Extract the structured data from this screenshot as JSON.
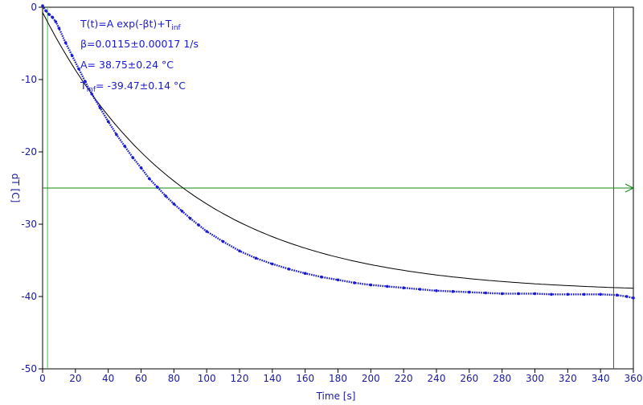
{
  "chart_data": {
    "type": "scatter",
    "xlabel": "Time [s]",
    "ylabel": "dT [C]",
    "xlim": [
      0,
      360
    ],
    "ylim": [
      -50,
      0
    ],
    "xticks": [
      0,
      20,
      40,
      60,
      80,
      100,
      120,
      140,
      160,
      180,
      200,
      220,
      240,
      260,
      280,
      300,
      320,
      340,
      360
    ],
    "yticks": [
      0,
      -10,
      -20,
      -30,
      -40,
      -50
    ],
    "grid": false,
    "fit": {
      "model": "T(t)=A exp(-βt)+T_inf",
      "beta": 0.0115,
      "beta_err": 0.00017,
      "A": 38.75,
      "A_err": 0.24,
      "T_inf": -39.47,
      "T_inf_err": 0.14
    },
    "annotations": {
      "formula_main": "T(t)=A exp(-βt)+T",
      "formula_sub": "inf",
      "beta_line": "β=0.0115±0.00017 1/s",
      "a_line": "A= 38.75±0.24 °C",
      "tinf_main": "T",
      "tinf_sub": "inf",
      "tinf_rest": "= -39.47±0.14 °C"
    },
    "series": [
      {
        "x": [
          0,
          2,
          4,
          6,
          8,
          10,
          14,
          18,
          22,
          26,
          30,
          35,
          40,
          45,
          50,
          55,
          60,
          65,
          70,
          75,
          80,
          85,
          90,
          95,
          100,
          110,
          120,
          130,
          140,
          150,
          160,
          170,
          180,
          190,
          200,
          210,
          220,
          230,
          240,
          250,
          260,
          270,
          280,
          290,
          300,
          310,
          320,
          330,
          340,
          350,
          356,
          360
        ],
        "y": [
          0.2,
          -0.5,
          -1.0,
          -1.4,
          -2.0,
          -2.9,
          -4.9,
          -6.7,
          -8.5,
          -10.3,
          -12.0,
          -13.9,
          -15.8,
          -17.6,
          -19.2,
          -20.8,
          -22.2,
          -23.7,
          -24.9,
          -26.1,
          -27.2,
          -28.2,
          -29.2,
          -30.1,
          -31.0,
          -32.4,
          -33.7,
          -34.7,
          -35.5,
          -36.2,
          -36.8,
          -37.3,
          -37.7,
          -38.1,
          -38.4,
          -38.6,
          -38.8,
          -39.0,
          -39.2,
          -39.3,
          -39.4,
          -39.5,
          -39.6,
          -39.6,
          -39.6,
          -39.7,
          -39.7,
          -39.7,
          -39.7,
          -39.8,
          -40.0,
          -40.2
        ]
      }
    ],
    "markers": {
      "green_vline_x": 3,
      "red_vline_x": 348,
      "hline_y": -25
    },
    "colors": {
      "data": "#1a1ad0",
      "fit": "#000000",
      "axis": "#1a1aa0",
      "green_vline": "#33cc33",
      "red_vline": "#cc2222",
      "hline": "#118811"
    }
  }
}
